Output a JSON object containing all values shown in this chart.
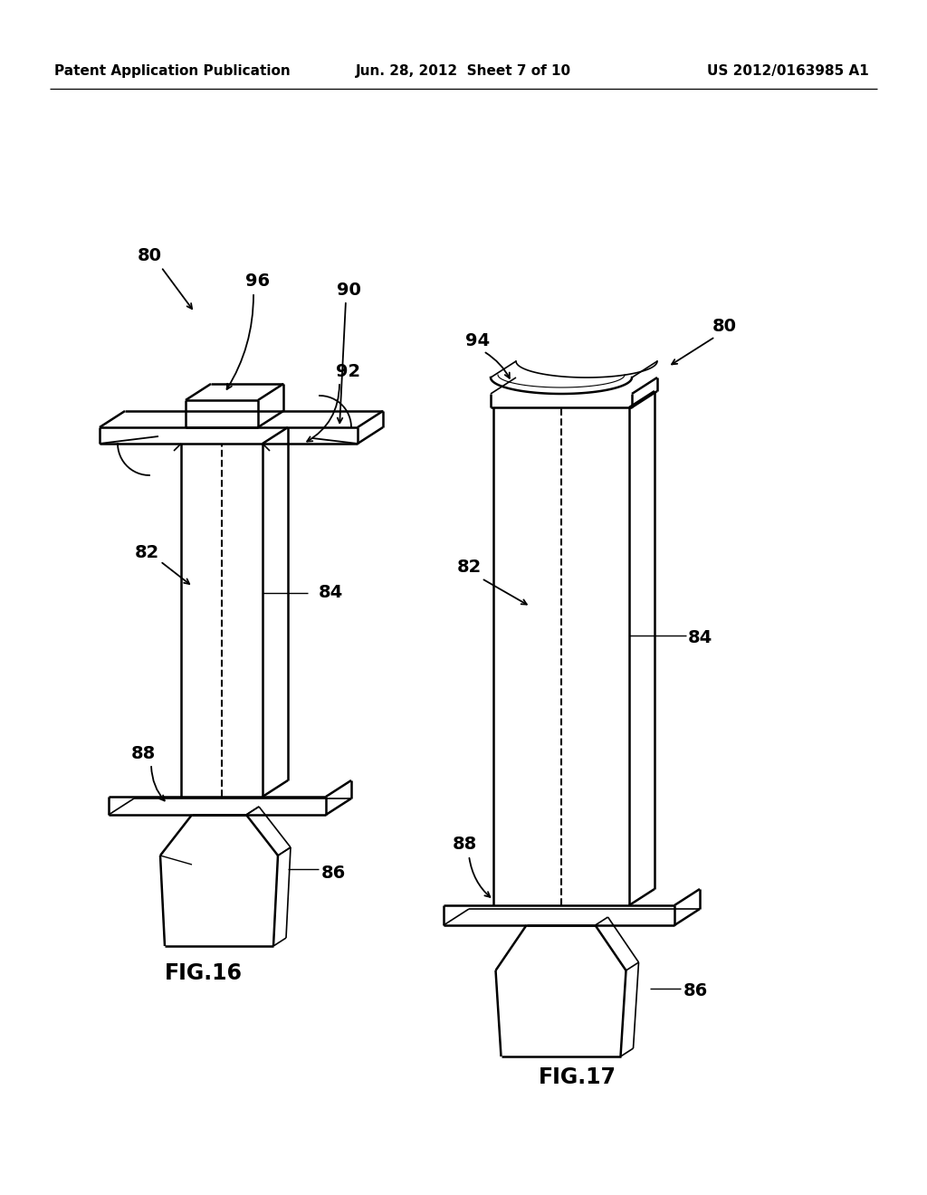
{
  "background_color": "#ffffff",
  "header_left": "Patent Application Publication",
  "header_center": "Jun. 28, 2012  Sheet 7 of 10",
  "header_right": "US 2012/0163985 A1",
  "header_fontsize": 11,
  "fig16_label": "FIG.16",
  "fig17_label": "FIG.17",
  "label_fontsize": 17,
  "ref_fontsize": 14,
  "line_color": "#000000",
  "line_width": 1.8
}
